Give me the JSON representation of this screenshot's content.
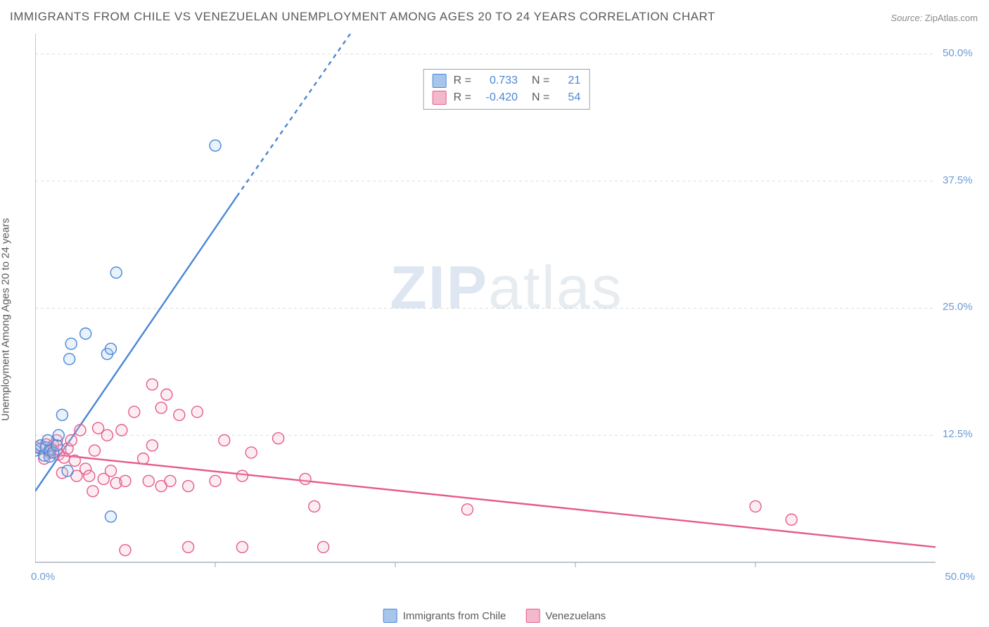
{
  "title": "IMMIGRANTS FROM CHILE VS VENEZUELAN UNEMPLOYMENT AMONG AGES 20 TO 24 YEARS CORRELATION CHART",
  "source": {
    "label": "Source:",
    "value": "ZipAtlas.com"
  },
  "y_axis_label": "Unemployment Among Ages 20 to 24 years",
  "watermark": {
    "part1": "ZIP",
    "part2": "atlas"
  },
  "chart": {
    "type": "scatter",
    "plot_background": "#ffffff",
    "axis_color": "#9aa5b0",
    "grid_color": "#d8dde2",
    "grid_dash": "4,4",
    "xlim": [
      0,
      50
    ],
    "ylim": [
      0,
      52
    ],
    "xticks": [
      0,
      10,
      20,
      30,
      40,
      50
    ],
    "yticks": [
      12.5,
      25.0,
      37.5,
      50.0
    ],
    "xtick_labels": {
      "0": "0.0%",
      "50": "50.0%"
    },
    "ytick_labels": {
      "12.5": "12.5%",
      "25.0": "25.0%",
      "37.5": "37.5%",
      "50.0": "50.0%"
    },
    "tick_label_color": "#6b9bd6",
    "tick_label_fontsize": 15,
    "marker_radius": 8,
    "marker_stroke_width": 1.4,
    "marker_fill_opacity": 0.25,
    "trendline_width": 2.4,
    "series": {
      "chile": {
        "label": "Immigrants from Chile",
        "color_stroke": "#4a86d8",
        "color_fill": "#a8c6ec",
        "R": "0.733",
        "N": "21",
        "trend": {
          "x1": 0,
          "y1": 7.0,
          "x2": 11.2,
          "y2": 36.0
        },
        "trend_dashed_ext": {
          "x1": 11.2,
          "y1": 36.0,
          "x2": 17.5,
          "y2": 52.0
        },
        "points": [
          [
            0.0,
            11.0
          ],
          [
            0.3,
            11.2
          ],
          [
            0.3,
            11.5
          ],
          [
            0.5,
            10.5
          ],
          [
            0.6,
            11.3
          ],
          [
            0.7,
            12.0
          ],
          [
            0.8,
            10.4
          ],
          [
            0.8,
            11.0
          ],
          [
            1.0,
            10.8
          ],
          [
            1.2,
            11.5
          ],
          [
            1.3,
            12.5
          ],
          [
            1.5,
            14.5
          ],
          [
            1.8,
            9.0
          ],
          [
            1.9,
            20.0
          ],
          [
            2.0,
            21.5
          ],
          [
            2.8,
            22.5
          ],
          [
            4.0,
            20.5
          ],
          [
            4.2,
            21.0
          ],
          [
            4.2,
            4.5
          ],
          [
            4.5,
            28.5
          ],
          [
            10.0,
            41.0
          ]
        ]
      },
      "venezuelans": {
        "label": "Venezuelans",
        "color_stroke": "#e65a8a",
        "color_fill": "#f4b8cd",
        "R": "-0.420",
        "N": "54",
        "trend": {
          "x1": 0,
          "y1": 10.8,
          "x2": 50,
          "y2": 1.5
        },
        "points": [
          [
            0.0,
            11.3
          ],
          [
            0.3,
            11.5
          ],
          [
            0.5,
            10.2
          ],
          [
            0.6,
            11.6
          ],
          [
            0.8,
            10.8
          ],
          [
            0.9,
            11.2
          ],
          [
            1.0,
            11.5
          ],
          [
            1.2,
            12.0
          ],
          [
            1.3,
            10.6
          ],
          [
            1.4,
            11.0
          ],
          [
            1.5,
            8.8
          ],
          [
            1.6,
            10.3
          ],
          [
            1.8,
            11.2
          ],
          [
            2.0,
            12.0
          ],
          [
            2.2,
            10.0
          ],
          [
            2.3,
            8.5
          ],
          [
            2.5,
            13.0
          ],
          [
            2.8,
            9.2
          ],
          [
            3.0,
            8.5
          ],
          [
            3.2,
            7.0
          ],
          [
            3.3,
            11.0
          ],
          [
            3.5,
            13.2
          ],
          [
            3.8,
            8.2
          ],
          [
            4.0,
            12.5
          ],
          [
            4.2,
            9.0
          ],
          [
            4.5,
            7.8
          ],
          [
            4.8,
            13.0
          ],
          [
            5.0,
            1.2
          ],
          [
            5.0,
            8.0
          ],
          [
            5.5,
            14.8
          ],
          [
            6.0,
            10.2
          ],
          [
            6.3,
            8.0
          ],
          [
            6.5,
            17.5
          ],
          [
            6.5,
            11.5
          ],
          [
            7.0,
            15.2
          ],
          [
            7.0,
            7.5
          ],
          [
            7.3,
            16.5
          ],
          [
            7.5,
            8.0
          ],
          [
            8.0,
            14.5
          ],
          [
            8.5,
            7.5
          ],
          [
            8.5,
            1.5
          ],
          [
            9.0,
            14.8
          ],
          [
            10.0,
            8.0
          ],
          [
            10.5,
            12.0
          ],
          [
            11.5,
            1.5
          ],
          [
            11.5,
            8.5
          ],
          [
            12.0,
            10.8
          ],
          [
            13.5,
            12.2
          ],
          [
            15.0,
            8.2
          ],
          [
            15.5,
            5.5
          ],
          [
            16.0,
            1.5
          ],
          [
            24.0,
            5.2
          ],
          [
            40.0,
            5.5
          ],
          [
            42.0,
            4.2
          ]
        ]
      }
    },
    "legend": {
      "chile_label": "Immigrants from Chile",
      "venezuelans_label": "Venezuelans"
    },
    "stats_labels": {
      "R": "R =",
      "N": "N ="
    }
  }
}
